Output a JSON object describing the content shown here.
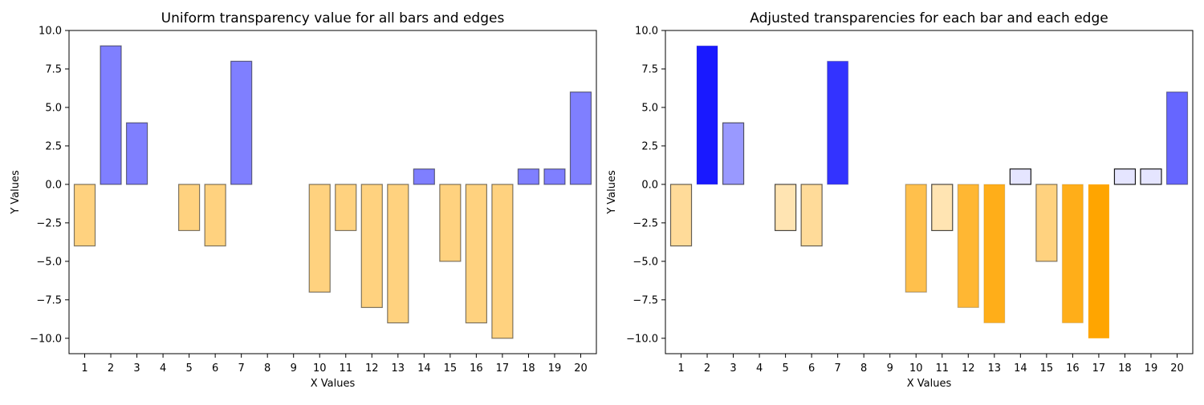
{
  "chart_data": [
    {
      "type": "bar",
      "title": "Uniform transparency value for all bars and edges",
      "xlabel": "X Values",
      "ylabel": "Y Values",
      "categories": [
        "1",
        "2",
        "3",
        "4",
        "5",
        "6",
        "7",
        "8",
        "9",
        "10",
        "11",
        "12",
        "13",
        "14",
        "15",
        "16",
        "17",
        "18",
        "19",
        "20"
      ],
      "values": [
        -4,
        9,
        4,
        0,
        -3,
        -4,
        8,
        0,
        0,
        -7,
        -3,
        -8,
        -9,
        1,
        -5,
        -9,
        -10,
        1,
        1,
        6
      ],
      "ylim": [
        -11,
        10
      ],
      "yticks": [
        "−10.0",
        "−7.5",
        "−5.0",
        "−2.5",
        "0.0",
        "2.5",
        "5.0",
        "7.5",
        "10.0"
      ],
      "ytick_values": [
        -10,
        -7.5,
        -5,
        -2.5,
        0,
        2.5,
        5,
        7.5,
        10
      ],
      "colors": {
        "positive": "#0000ff",
        "negative": "#ffa500",
        "edge": "#000000"
      },
      "bar_alpha": 0.5,
      "edge_alpha": 0.5
    },
    {
      "type": "bar",
      "title": "Adjusted transparencies for each bar and each edge",
      "xlabel": "X Values",
      "ylabel": "Y Values",
      "categories": [
        "1",
        "2",
        "3",
        "4",
        "5",
        "6",
        "7",
        "8",
        "9",
        "10",
        "11",
        "12",
        "13",
        "14",
        "15",
        "16",
        "17",
        "18",
        "19",
        "20"
      ],
      "values": [
        -4,
        9,
        4,
        0,
        -3,
        -4,
        8,
        0,
        0,
        -7,
        -3,
        -8,
        -9,
        1,
        -5,
        -9,
        -10,
        1,
        1,
        6
      ],
      "ylim": [
        -11,
        10
      ],
      "yticks": [
        "−10.0",
        "−7.5",
        "−5.0",
        "−2.5",
        "0.0",
        "2.5",
        "5.0",
        "7.5",
        "10.0"
      ],
      "ytick_values": [
        -10,
        -7.5,
        -5,
        -2.5,
        0,
        2.5,
        5,
        7.5,
        10
      ],
      "colors": {
        "positive": "#0000ff",
        "negative": "#ffa500",
        "edge": "#000000"
      },
      "bar_alpha": "proportional to |value|",
      "edge_alpha": "inversely proportional to |value|"
    }
  ]
}
